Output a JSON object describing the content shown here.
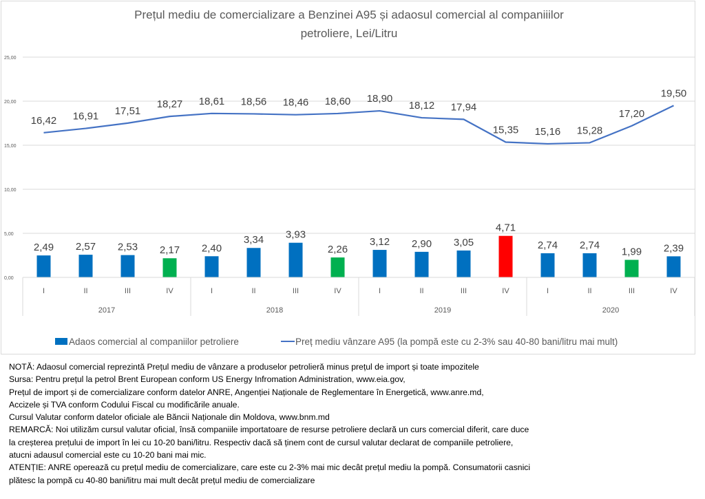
{
  "chart_data": {
    "type": "bar+line",
    "title_lines": [
      "Prețul mediu de comercializare a Benzinei A95 și adaosul comercial al companiiilor",
      "petroliere, Lei/Litru"
    ],
    "ylim": [
      0,
      25
    ],
    "yticks": [
      "0,00",
      "5,00",
      "10,00",
      "15,00",
      "20,00",
      "25,00"
    ],
    "ytick_values": [
      0,
      5,
      10,
      15,
      20,
      25
    ],
    "grid": true,
    "categories": [
      "I",
      "II",
      "III",
      "IV",
      "I",
      "II",
      "III",
      "IV",
      "I",
      "II",
      "III",
      "IV",
      "I",
      "II",
      "III",
      "IV"
    ],
    "groups": [
      {
        "label": "2017",
        "count": 4
      },
      {
        "label": "2018",
        "count": 4
      },
      {
        "label": "2019",
        "count": 4
      },
      {
        "label": "2020",
        "count": 4
      }
    ],
    "series": [
      {
        "name": "Adaos comercial al companiilor petroliere",
        "type": "bar",
        "color": "#0070C0",
        "values": [
          2.49,
          2.57,
          2.53,
          2.17,
          2.4,
          3.34,
          3.93,
          2.26,
          3.12,
          2.9,
          3.05,
          4.71,
          2.74,
          2.74,
          1.99,
          2.39
        ],
        "labels": [
          "2,49",
          "2,57",
          "2,53",
          "2,17",
          "2,40",
          "3,34",
          "3,93",
          "2,26",
          "3,12",
          "2,90",
          "3,05",
          "4,71",
          "2,74",
          "2,74",
          "1,99",
          "2,39"
        ],
        "point_colors": [
          "#0070C0",
          "#0070C0",
          "#0070C0",
          "#00B050",
          "#0070C0",
          "#0070C0",
          "#0070C0",
          "#00B050",
          "#0070C0",
          "#0070C0",
          "#0070C0",
          "#FF0000",
          "#0070C0",
          "#0070C0",
          "#00B050",
          "#0070C0"
        ]
      },
      {
        "name": "Preț mediu vânzare A95 (la pompă este cu 2-3% sau 40-80 bani/litru mai mult)",
        "type": "line",
        "color": "#4472C4",
        "values": [
          16.42,
          16.91,
          17.51,
          18.27,
          18.61,
          18.56,
          18.46,
          18.6,
          18.9,
          18.12,
          17.94,
          15.35,
          15.16,
          15.28,
          17.2,
          19.5
        ],
        "labels": [
          "16,42",
          "16,91",
          "17,51",
          "18,27",
          "18,61",
          "18,56",
          "18,46",
          "18,60",
          "18,90",
          "18,12",
          "17,94",
          "15,35",
          "15,16",
          "15,28",
          "17,20",
          "19,50"
        ]
      }
    ],
    "legend_position": "bottom"
  },
  "notes": [
    "NOTĂ: Adaosul comercial reprezintă Prețul mediu de vânzare a produselor petrolieră minus prețul de import și toate impozitele",
    "Sursa: Pentru prețul la petrol Brent European conform US Energy Infromation Administration, www.eia.gov,",
    "Prețul de import și de comercializare conform datelor ANRE, Angenției Naționale de Reglementare în Energetică, www.anre.md,",
    "Accizele și TVA conform Codului Fiscal cu modificările anuale.",
    "Cursul Valutar conform datelor oficiale ale Băncii Naționale din Moldova, www.bnm.md",
    "REMARCĂ: Noi utilizăm cursul valutar oficial, însă companiile importatoare de resurse petroliere declară un curs comercial diferit, care duce",
    "la creșterea prețului de import în lei cu 10-20 bani/litru. Respectiv dacă să ținem cont de cursul valutar declarat de companiile petroliere,",
    "atucni adausul comercial este cu 10-20 bani mai mic.",
    "ATENȚIE: ANRE operează cu prețul mediu de comercializare, care este cu 2-3% mai mic decât prețul mediu la pompă. Consumatorii casnici",
    "plătesc la pompă cu 40-80 bani/litru mai mult decât prețul mediu de comercializare"
  ]
}
